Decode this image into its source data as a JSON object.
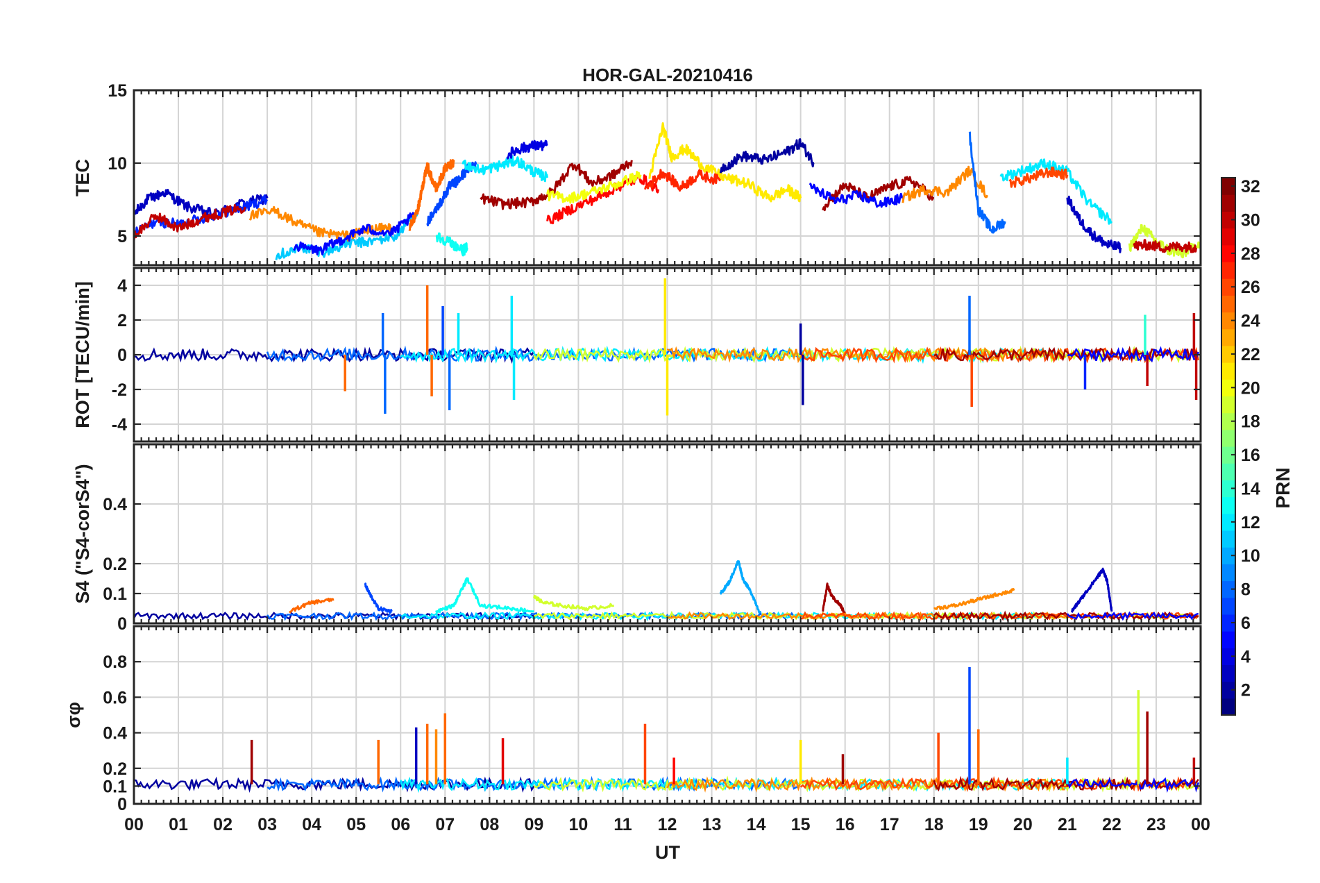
{
  "chart_data": {
    "type": "line",
    "title": "HOR-GAL-20210416",
    "xlabel": "UT",
    "x_ticks": [
      "00",
      "01",
      "02",
      "03",
      "04",
      "05",
      "06",
      "07",
      "08",
      "09",
      "10",
      "11",
      "12",
      "13",
      "14",
      "15",
      "16",
      "17",
      "18",
      "19",
      "20",
      "21",
      "22",
      "23",
      "00"
    ],
    "xlim_hours": [
      0,
      24
    ],
    "colorbar": {
      "label": "PRN",
      "range": [
        1,
        32
      ],
      "ticks": [
        2,
        4,
        6,
        8,
        10,
        12,
        14,
        16,
        18,
        20,
        22,
        24,
        26,
        28,
        30,
        32
      ],
      "colormap": "jet"
    },
    "panels": [
      {
        "id": "tec",
        "ylabel": "TEC",
        "ylim": [
          3,
          15
        ],
        "yticks": [
          5,
          10,
          15
        ],
        "series": [
          {
            "prn": 3,
            "t": [
              0,
              0.3,
              0.7,
              1.2,
              1.8,
              2.4,
              3.0
            ],
            "y": [
              6.5,
              7.5,
              8.0,
              7.0,
              6.5,
              7.2,
              7.6
            ]
          },
          {
            "prn": 6,
            "t": [
              0,
              0.5,
              1.0,
              1.5,
              2.0,
              2.5,
              3.0
            ],
            "y": [
              5.2,
              6.0,
              5.8,
              6.2,
              6.6,
              7.0,
              7.5
            ]
          },
          {
            "prn": 30,
            "t": [
              0,
              0.5,
              1.0,
              1.5,
              2.0,
              2.5
            ],
            "y": [
              5.0,
              6.4,
              5.5,
              6.2,
              6.6,
              7.0
            ]
          },
          {
            "prn": 11,
            "t": [
              3.2,
              3.8,
              4.3,
              4.8,
              5.3,
              5.9,
              6.4
            ],
            "y": [
              3.7,
              4.2,
              3.9,
              4.5,
              4.6,
              5.0,
              6.8
            ]
          },
          {
            "prn": 24,
            "t": [
              2.6,
              3.2,
              3.7,
              4.2,
              4.8,
              5.3,
              5.8
            ],
            "y": [
              6.4,
              6.7,
              5.8,
              5.2,
              5.0,
              5.4,
              5.6
            ]
          },
          {
            "prn": 5,
            "t": [
              3.6,
              4.2,
              4.7,
              5.2,
              5.8,
              6.3
            ],
            "y": [
              4.3,
              4.0,
              4.8,
              5.5,
              5.2,
              6.4
            ]
          },
          {
            "prn": 25,
            "t": [
              6.2,
              6.4,
              6.5,
              6.6,
              6.8,
              7.0,
              7.2
            ],
            "y": [
              5.5,
              7.0,
              8.5,
              9.8,
              8.2,
              9.6,
              10.1
            ]
          },
          {
            "prn": 7,
            "t": [
              6.6,
              6.9,
              7.1,
              7.3,
              7.5,
              7.7
            ],
            "y": [
              6.0,
              7.3,
              8.4,
              8.8,
              9.6,
              10.0
            ]
          },
          {
            "prn": 13,
            "t": [
              6.8,
              7.1,
              7.4,
              7.5
            ],
            "y": [
              5.0,
              4.6,
              4.0,
              4.2
            ]
          },
          {
            "prn": 12,
            "t": [
              7.4,
              7.8,
              8.2,
              8.6,
              9.0,
              9.3
            ],
            "y": [
              10.0,
              9.5,
              9.8,
              10.2,
              9.4,
              9.0
            ]
          },
          {
            "prn": 4,
            "t": [
              8.4,
              8.7,
              9.0,
              9.3
            ],
            "y": [
              10.6,
              11.0,
              11.2,
              11.2
            ]
          },
          {
            "prn": 31,
            "t": [
              7.8,
              8.3,
              8.9,
              9.4,
              9.9,
              10.3,
              10.8,
              11.2
            ],
            "y": [
              7.6,
              7.2,
              7.3,
              8.0,
              10.0,
              8.6,
              9.2,
              10.2
            ]
          },
          {
            "prn": 28,
            "t": [
              9.3,
              9.8,
              10.4,
              10.9,
              11.4,
              11.8
            ],
            "y": [
              6.0,
              6.8,
              7.6,
              8.4,
              9.0,
              8.2
            ]
          },
          {
            "prn": 20,
            "t": [
              9.3,
              9.8,
              10.3,
              10.9,
              11.4
            ],
            "y": [
              7.8,
              7.6,
              8.0,
              8.6,
              9.2
            ]
          },
          {
            "prn": 21,
            "t": [
              11.6,
              11.9,
              12.1,
              12.4,
              12.8,
              13.3,
              13.8,
              14.3,
              14.7,
              15.0
            ],
            "y": [
              9.0,
              12.5,
              10.4,
              11.0,
              9.8,
              9.0,
              8.6,
              7.6,
              8.2,
              7.6
            ]
          },
          {
            "prn": 27,
            "t": [
              11.5,
              11.9,
              12.3,
              12.7,
              13.2
            ],
            "y": [
              8.2,
              9.4,
              8.3,
              9.2,
              8.8
            ]
          },
          {
            "prn": 2,
            "t": [
              13.2,
              13.7,
              14.2,
              14.7,
              15.0,
              15.3
            ],
            "y": [
              9.6,
              10.5,
              10.2,
              10.8,
              11.4,
              10.0
            ]
          },
          {
            "prn": 31,
            "t": [
              15.5,
              16.0,
              16.5,
              17.0,
              17.5,
              18.0
            ],
            "y": [
              7.0,
              8.5,
              7.6,
              8.4,
              8.8,
              7.6
            ]
          },
          {
            "prn": 5,
            "t": [
              15.2,
              15.8,
              16.3,
              16.8,
              17.3
            ],
            "y": [
              8.4,
              7.4,
              7.8,
              7.2,
              7.6
            ]
          },
          {
            "prn": 24,
            "t": [
              17.3,
              17.8,
              18.3,
              18.8,
              19.2
            ],
            "y": [
              7.6,
              8.2,
              8.0,
              9.5,
              7.8
            ]
          },
          {
            "prn": 8,
            "t": [
              18.8,
              19.0,
              19.3,
              19.6
            ],
            "y": [
              12.0,
              6.8,
              5.4,
              6.0
            ]
          },
          {
            "prn": 12,
            "t": [
              19.5,
              20.0,
              20.5,
              21.0,
              21.5,
              22.0
            ],
            "y": [
              9.0,
              9.5,
              10.0,
              9.4,
              7.2,
              6.0
            ]
          },
          {
            "prn": 26,
            "t": [
              19.7,
              20.2,
              20.6,
              21.0
            ],
            "y": [
              8.6,
              9.0,
              9.4,
              9.2
            ]
          },
          {
            "prn": 3,
            "t": [
              21.0,
              21.3,
              21.6,
              21.9,
              22.2
            ],
            "y": [
              7.6,
              6.0,
              5.0,
              4.4,
              4.2
            ]
          },
          {
            "prn": 19,
            "t": [
              22.4,
              22.7,
              23.0,
              23.3,
              23.6,
              24.0
            ],
            "y": [
              4.2,
              5.6,
              4.6,
              4.0,
              3.8,
              4.6
            ]
          },
          {
            "prn": 30,
            "t": [
              22.5,
              22.8,
              23.2,
              23.6,
              23.9
            ],
            "y": [
              4.3,
              4.4,
              4.2,
              4.3,
              4.2
            ]
          }
        ]
      },
      {
        "id": "rot",
        "ylabel": "ROT [TECU/min]",
        "ylim": [
          -5,
          5
        ],
        "yticks": [
          -4,
          -2,
          0,
          2,
          4
        ],
        "spikes": [
          {
            "t": 4.75,
            "y": -2.1,
            "prn": 25
          },
          {
            "t": 5.6,
            "y": 2.4,
            "prn": 8
          },
          {
            "t": 5.65,
            "y": -3.4,
            "prn": 8
          },
          {
            "t": 6.6,
            "y": 4.0,
            "prn": 25
          },
          {
            "t": 6.7,
            "y": -2.4,
            "prn": 25
          },
          {
            "t": 6.95,
            "y": 2.8,
            "prn": 7
          },
          {
            "t": 7.1,
            "y": -3.2,
            "prn": 8
          },
          {
            "t": 7.3,
            "y": 2.4,
            "prn": 12
          },
          {
            "t": 8.5,
            "y": 3.4,
            "prn": 12
          },
          {
            "t": 8.55,
            "y": -2.6,
            "prn": 12
          },
          {
            "t": 11.95,
            "y": 4.4,
            "prn": 21
          },
          {
            "t": 12.0,
            "y": -3.5,
            "prn": 21
          },
          {
            "t": 15.0,
            "y": 1.8,
            "prn": 2
          },
          {
            "t": 15.05,
            "y": -2.9,
            "prn": 2
          },
          {
            "t": 18.8,
            "y": 3.4,
            "prn": 8
          },
          {
            "t": 18.85,
            "y": -3.0,
            "prn": 26
          },
          {
            "t": 21.4,
            "y": -2.0,
            "prn": 6
          },
          {
            "t": 22.75,
            "y": 2.3,
            "prn": 14
          },
          {
            "t": 22.8,
            "y": -1.8,
            "prn": 30
          },
          {
            "t": 23.85,
            "y": 2.4,
            "prn": 30
          },
          {
            "t": 23.9,
            "y": -2.6,
            "prn": 30
          }
        ]
      },
      {
        "id": "s4",
        "ylabel": "S4 (\"S4-corS4\")",
        "ylim": [
          0,
          0.6
        ],
        "yticks": [
          0,
          0.1,
          0.2,
          0.4
        ],
        "series": [
          {
            "prn": 7,
            "t": [
              5.2,
              5.3,
              5.5,
              5.8
            ],
            "y": [
              0.13,
              0.1,
              0.05,
              0.04
            ]
          },
          {
            "prn": 13,
            "t": [
              6.8,
              7.2,
              7.4,
              7.5,
              7.8,
              8.5,
              9.0
            ],
            "y": [
              0.04,
              0.06,
              0.12,
              0.15,
              0.06,
              0.05,
              0.04
            ]
          },
          {
            "prn": 19,
            "t": [
              9.0,
              9.2,
              9.6,
              10.2,
              10.8
            ],
            "y": [
              0.09,
              0.07,
              0.06,
              0.05,
              0.06
            ]
          },
          {
            "prn": 10,
            "t": [
              13.2,
              13.4,
              13.6,
              13.7,
              13.9,
              14.1
            ],
            "y": [
              0.1,
              0.14,
              0.21,
              0.15,
              0.1,
              0.03
            ]
          },
          {
            "prn": 31,
            "t": [
              15.5,
              15.6,
              15.7,
              15.9,
              16.0
            ],
            "y": [
              0.04,
              0.13,
              0.09,
              0.06,
              0.03
            ]
          },
          {
            "prn": 3,
            "t": [
              21.1,
              21.3,
              21.5,
              21.7,
              21.8,
              21.9,
              22.0
            ],
            "y": [
              0.04,
              0.08,
              0.12,
              0.16,
              0.18,
              0.14,
              0.04
            ]
          },
          {
            "prn": 24,
            "t": [
              18.0,
              18.5,
              19.0,
              19.5,
              19.8
            ],
            "y": [
              0.05,
              0.06,
              0.08,
              0.1,
              0.11
            ]
          },
          {
            "prn": 25,
            "t": [
              3.5,
              4.0,
              4.5
            ],
            "y": [
              0.04,
              0.07,
              0.08
            ]
          }
        ]
      },
      {
        "id": "sigphi",
        "ylabel": "σφ",
        "ylim": [
          0,
          1.0
        ],
        "yticks": [
          0,
          0.1,
          0.2,
          0.4,
          0.6,
          0.8
        ],
        "spikes": [
          {
            "t": 2.65,
            "y": 0.36,
            "prn": 31
          },
          {
            "t": 5.5,
            "y": 0.36,
            "prn": 25
          },
          {
            "t": 6.35,
            "y": 0.43,
            "prn": 3
          },
          {
            "t": 6.6,
            "y": 0.45,
            "prn": 25
          },
          {
            "t": 6.8,
            "y": 0.42,
            "prn": 24
          },
          {
            "t": 7.0,
            "y": 0.51,
            "prn": 25
          },
          {
            "t": 8.3,
            "y": 0.37,
            "prn": 29
          },
          {
            "t": 11.5,
            "y": 0.45,
            "prn": 26
          },
          {
            "t": 12.15,
            "y": 0.26,
            "prn": 28
          },
          {
            "t": 15.0,
            "y": 0.36,
            "prn": 21
          },
          {
            "t": 15.95,
            "y": 0.28,
            "prn": 31
          },
          {
            "t": 18.1,
            "y": 0.4,
            "prn": 26
          },
          {
            "t": 18.8,
            "y": 0.77,
            "prn": 7
          },
          {
            "t": 19.0,
            "y": 0.42,
            "prn": 25
          },
          {
            "t": 21.0,
            "y": 0.26,
            "prn": 12
          },
          {
            "t": 22.6,
            "y": 0.64,
            "prn": 19
          },
          {
            "t": 22.8,
            "y": 0.52,
            "prn": 31
          },
          {
            "t": 23.85,
            "y": 0.26,
            "prn": 30
          }
        ]
      }
    ]
  }
}
